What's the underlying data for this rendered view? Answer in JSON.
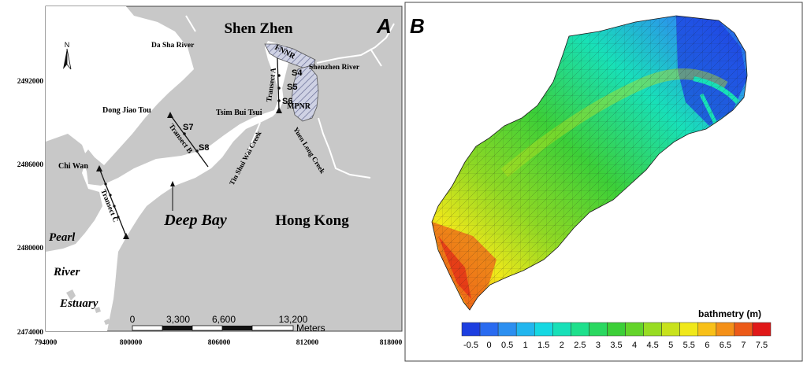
{
  "panel_a": {
    "letter": "A",
    "places": {
      "shenzhen": "Shen Zhen",
      "hongkong": "Hong Kong",
      "deep_bay": "Deep Bay",
      "pearl": "Pearl",
      "river": "River",
      "estuary": "Estuary",
      "da_sha_river": "Da Sha River",
      "shenzhen_river": "Shenzhen River",
      "fnnr": "FNNR",
      "mpnr": "MPNR",
      "tsim_bui_tsui": "Tsim Bui Tsui",
      "dong_jiao_tou": "Dong Jiao Tou",
      "chi_wan": "Chi Wan",
      "tin_shui_wai_creek": "Tin Shui Wai Creek",
      "yuen_long_creek": "Yuen Long Creek"
    },
    "transects": {
      "a": "Transect A",
      "b": "Transect B",
      "c": "Transect C"
    },
    "stations": [
      "S4",
      "S5",
      "S6",
      "S7",
      "S8"
    ],
    "north": "N",
    "y_ticks": [
      "2492000",
      "2486000",
      "2480000",
      "2474000"
    ],
    "x_ticks": [
      "794000",
      "800000",
      "806000",
      "812000",
      "818000"
    ],
    "scale_labels": [
      "0",
      "3,300",
      "6,600",
      "13,200"
    ],
    "scale_unit": "Meters",
    "colors": {
      "land": "#c8c8c8",
      "water": "#ffffff",
      "reserve": "#c9cde0"
    }
  },
  "panel_b": {
    "letter": "B",
    "colorbar_title": "bathmetry (m)",
    "ticks": [
      "-0.5",
      "0",
      "0.5",
      "1",
      "1.5",
      "2",
      "2.5",
      "3",
      "3.5",
      "4",
      "4.5",
      "5",
      "5.5",
      "6",
      "6.5",
      "7",
      "7.5"
    ],
    "colors": [
      "#1d3fe0",
      "#2a6bf0",
      "#2c8ff0",
      "#22b6ee",
      "#16d8e2",
      "#18e0b8",
      "#1ee08c",
      "#2ad860",
      "#3ccf38",
      "#64d42a",
      "#98dc22",
      "#c8e21c",
      "#f0e81a",
      "#f8c018",
      "#f49018",
      "#ec5a18",
      "#e01818"
    ]
  }
}
